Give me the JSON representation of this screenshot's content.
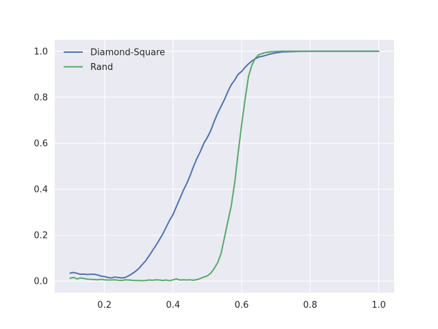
{
  "chart_data": {
    "type": "line",
    "title": "",
    "xlabel": "",
    "ylabel": "",
    "xlim": [
      0.055,
      1.045
    ],
    "ylim": [
      -0.05,
      1.05
    ],
    "xticks": [
      0.2,
      0.4,
      0.6,
      0.8,
      1.0
    ],
    "xtick_labels": [
      "0.2",
      "0.4",
      "0.6",
      "0.8",
      "1.0"
    ],
    "yticks": [
      0.0,
      0.2,
      0.4,
      0.6,
      0.8,
      1.0
    ],
    "ytick_labels": [
      "0.0",
      "0.2",
      "0.4",
      "0.6",
      "0.8",
      "1.0"
    ],
    "grid": true,
    "legend_position": "top-left",
    "background_color": "#eaeaf2",
    "grid_color": "#ffffff",
    "series": [
      {
        "name": "Diamond-Square",
        "color": "#4c72b0",
        "x": [
          0.1,
          0.11,
          0.12,
          0.13,
          0.14,
          0.15,
          0.16,
          0.17,
          0.18,
          0.19,
          0.2,
          0.21,
          0.22,
          0.23,
          0.24,
          0.25,
          0.26,
          0.27,
          0.28,
          0.29,
          0.3,
          0.31,
          0.32,
          0.33,
          0.34,
          0.35,
          0.36,
          0.37,
          0.38,
          0.39,
          0.4,
          0.41,
          0.42,
          0.43,
          0.44,
          0.45,
          0.46,
          0.47,
          0.48,
          0.49,
          0.5,
          0.51,
          0.52,
          0.53,
          0.54,
          0.55,
          0.56,
          0.57,
          0.58,
          0.59,
          0.6,
          0.61,
          0.62,
          0.63,
          0.64,
          0.65,
          0.66,
          0.67,
          0.68,
          0.69,
          0.7,
          0.71,
          0.72,
          0.74,
          0.76,
          0.8,
          0.85,
          0.9,
          0.95,
          1.0
        ],
        "y": [
          0.035,
          0.038,
          0.034,
          0.03,
          0.031,
          0.029,
          0.03,
          0.03,
          0.027,
          0.022,
          0.02,
          0.016,
          0.014,
          0.018,
          0.016,
          0.014,
          0.016,
          0.023,
          0.032,
          0.042,
          0.055,
          0.072,
          0.088,
          0.11,
          0.133,
          0.155,
          0.18,
          0.205,
          0.235,
          0.265,
          0.29,
          0.325,
          0.36,
          0.395,
          0.425,
          0.46,
          0.5,
          0.535,
          0.565,
          0.6,
          0.625,
          0.655,
          0.695,
          0.73,
          0.76,
          0.79,
          0.825,
          0.855,
          0.875,
          0.9,
          0.912,
          0.93,
          0.945,
          0.958,
          0.967,
          0.975,
          0.978,
          0.982,
          0.987,
          0.99,
          0.993,
          0.995,
          0.997,
          0.998,
          0.999,
          1.0,
          1.0,
          1.0,
          1.0,
          1.0
        ]
      },
      {
        "name": "Rand",
        "color": "#55a868",
        "x": [
          0.1,
          0.11,
          0.12,
          0.13,
          0.14,
          0.15,
          0.16,
          0.17,
          0.18,
          0.19,
          0.2,
          0.21,
          0.22,
          0.23,
          0.24,
          0.25,
          0.26,
          0.27,
          0.28,
          0.29,
          0.3,
          0.31,
          0.32,
          0.33,
          0.34,
          0.35,
          0.36,
          0.37,
          0.38,
          0.39,
          0.4,
          0.41,
          0.42,
          0.43,
          0.44,
          0.45,
          0.46,
          0.47,
          0.48,
          0.49,
          0.5,
          0.51,
          0.52,
          0.53,
          0.54,
          0.55,
          0.56,
          0.57,
          0.58,
          0.59,
          0.6,
          0.61,
          0.62,
          0.63,
          0.64,
          0.65,
          0.66,
          0.67,
          0.68,
          0.69,
          0.7,
          0.72,
          0.75,
          0.8,
          0.85,
          0.9,
          0.95,
          1.0
        ],
        "y": [
          0.013,
          0.016,
          0.01,
          0.014,
          0.012,
          0.009,
          0.008,
          0.007,
          0.006,
          0.008,
          0.006,
          0.005,
          0.005,
          0.006,
          0.004,
          0.003,
          0.006,
          0.005,
          0.004,
          0.003,
          0.003,
          0.002,
          0.003,
          0.005,
          0.004,
          0.006,
          0.005,
          0.003,
          0.005,
          0.002,
          0.006,
          0.01,
          0.005,
          0.006,
          0.005,
          0.006,
          0.004,
          0.007,
          0.012,
          0.018,
          0.023,
          0.035,
          0.055,
          0.08,
          0.12,
          0.19,
          0.26,
          0.33,
          0.43,
          0.56,
          0.68,
          0.79,
          0.89,
          0.94,
          0.97,
          0.985,
          0.99,
          0.995,
          0.997,
          0.998,
          0.999,
          1.0,
          1.0,
          1.0,
          1.0,
          1.0,
          1.0,
          1.0
        ]
      }
    ]
  }
}
